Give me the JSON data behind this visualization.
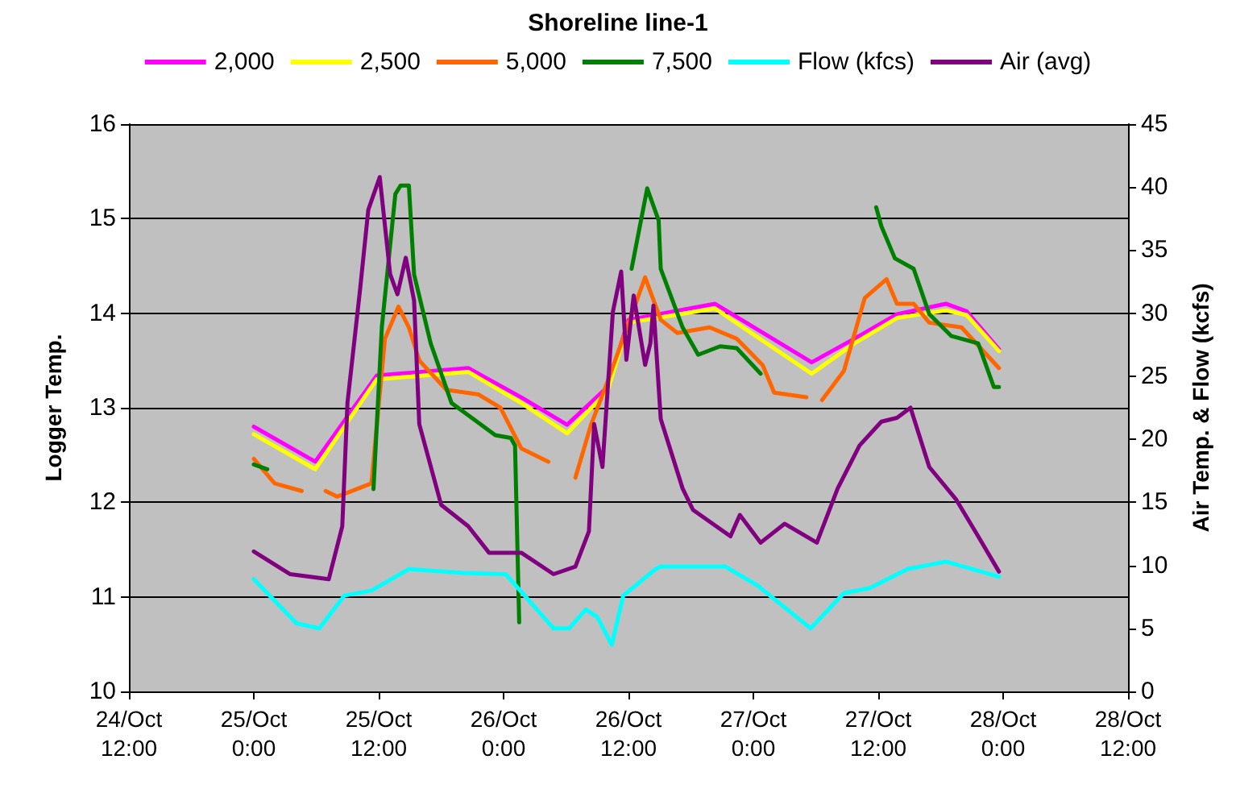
{
  "chart_data": {
    "type": "line",
    "title": "Shoreline line-1",
    "ylabel": "Logger Temp.",
    "y2label": "Air Temp. & Flow (kcfs)",
    "xlim": [
      "--10-24T12:00",
      "--10-28T12:00"
    ],
    "xticks": [
      {
        "value": "--10-24T12:00",
        "label": "24/Oct\n12:00"
      },
      {
        "value": "--10-25T00:00",
        "label": "25/Oct\n0:00"
      },
      {
        "value": "--10-25T12:00",
        "label": "25/Oct\n12:00"
      },
      {
        "value": "--10-26T00:00",
        "label": "26/Oct\n0:00"
      },
      {
        "value": "--10-26T12:00",
        "label": "26/Oct\n12:00"
      },
      {
        "value": "--10-27T00:00",
        "label": "27/Oct\n0:00"
      },
      {
        "value": "--10-27T12:00",
        "label": "27/Oct\n12:00"
      },
      {
        "value": "--10-28T00:00",
        "label": "28/Oct\n0:00"
      },
      {
        "value": "--10-28T12:00",
        "label": "28/Oct\n12:00"
      }
    ],
    "ylim": [
      10,
      16
    ],
    "yticks": [
      10,
      11,
      12,
      13,
      14,
      15,
      16
    ],
    "y2lim": [
      0,
      45
    ],
    "y2ticks": [
      0,
      5,
      10,
      15,
      20,
      25,
      30,
      35,
      40,
      45
    ],
    "grid": "y",
    "legend": "top",
    "marker": "none",
    "line_style": "solid",
    "series": [
      {
        "name": "2,000",
        "color": "#ff00ff",
        "x": [
          "--10-25T00:00",
          "--10-25T05:54",
          "--10-25T11:48",
          "--10-25T20:36",
          "--10-26T01:42",
          "--10-26T06:06",
          "--10-26T10:00",
          "--10-26T12:00",
          "--10-26T20:18",
          "--10-27T05:36",
          "--10-27T09:42",
          "--10-27T13:48",
          "--10-27T18:30",
          "--10-27T20:30",
          "--10-27T23:36"
        ],
        "values": [
          12.8,
          12.43,
          13.34,
          13.42,
          13.11,
          12.82,
          13.22,
          13.93,
          14.1,
          13.48,
          13.73,
          13.99,
          14.1,
          14.02,
          13.62
        ]
      },
      {
        "name": "2,500",
        "color": "#ffff00",
        "x": [
          "--10-25T00:00",
          "--10-25T05:54",
          "--10-25T11:48",
          "--10-25T20:36",
          "--10-26T01:42",
          "--10-26T06:06",
          "--10-26T10:00",
          "--10-26T12:00",
          "--10-26T20:18",
          "--10-27T05:36",
          "--10-27T09:42",
          "--10-27T13:48",
          "--10-27T18:30",
          "--10-27T20:30",
          "--10-27T23:36"
        ],
        "values": [
          12.72,
          12.35,
          13.3,
          13.38,
          13.05,
          12.73,
          13.18,
          13.9,
          14.05,
          13.36,
          13.68,
          13.95,
          14.03,
          13.98,
          13.6
        ]
      },
      {
        "name": "5,000",
        "color": "#ff6600",
        "x": [
          "--10-25T00:00",
          "--10-25T02:00",
          "--10-25T04:36",
          "--10-25T05:48",
          "--10-25T06:54",
          "--10-25T08:00",
          "--10-25T11:18",
          "--10-25T12:36",
          "--10-25T13:54",
          "--10-25T14:54",
          "--10-25T15:54",
          "--10-25T18:30",
          "--10-25T21:36",
          "--10-25T23:42",
          "--10-26T01:42",
          "--10-26T04:18",
          "--10-26T05:30",
          "--10-26T06:54",
          "--10-26T08:24",
          "--10-26T10:00",
          "--10-26T13:36",
          "--10-26T15:06",
          "--10-26T16:42",
          "--10-26T19:48",
          "--10-26T22:24",
          "--10-27T00:54",
          "--10-27T02:00",
          "--10-27T05:06",
          "--10-27T05:48",
          "--10-27T06:36",
          "--10-27T08:42",
          "--10-27T10:42",
          "--10-27T12:48",
          "--10-27T13:48",
          "--10-27T15:24",
          "--10-27T16:54",
          "--10-27T20:00",
          "--10-27T23:36"
        ],
        "values": [
          12.46,
          12.2,
          12.12,
          null,
          12.12,
          12.06,
          12.2,
          13.73,
          14.07,
          13.85,
          13.5,
          13.19,
          13.14,
          13,
          12.57,
          12.43,
          null,
          12.26,
          12.82,
          13.28,
          14.38,
          13.93,
          13.79,
          13.85,
          13.73,
          13.45,
          13.16,
          13.11,
          null,
          13.08,
          13.39,
          14.16,
          14.36,
          14.1,
          14.1,
          13.9,
          13.85,
          13.42
        ]
      },
      {
        "name": "7,500",
        "color": "#008000",
        "x": [
          "--10-25T00:00",
          "--10-25T01:18",
          "--10-25T06:00",
          "--10-25T11:30",
          "--10-25T12:18",
          "--10-25T13:36",
          "--10-25T14:06",
          "--10-25T14:54",
          "--10-25T15:24",
          "--10-25T17:00",
          "--10-25T19:00",
          "--10-25T21:06",
          "--10-25T23:12",
          "--10-26T00:42",
          "--10-26T01:06",
          "--10-26T01:30",
          "--10-26T07:00",
          "--10-26T12:18",
          "--10-26T13:48",
          "--10-26T14:54",
          "--10-26T15:06",
          "--10-26T17:12",
          "--10-26T18:42",
          "--10-26T20:48",
          "--10-26T22:24",
          "--10-27T00:42",
          "--10-27T06:00",
          "--10-27T11:48",
          "--10-27T12:18",
          "--10-27T13:36",
          "--10-27T15:24",
          "--10-27T16:54",
          "--10-27T19:00",
          "--10-27T21:36",
          "--10-27T23:06",
          "--10-27T23:36"
        ],
        "values": [
          12.4,
          12.35,
          null,
          12.14,
          13.85,
          15.26,
          15.35,
          15.35,
          14.41,
          13.68,
          13.05,
          12.88,
          12.71,
          12.68,
          12.6,
          10.73,
          null,
          14.47,
          15.32,
          14.98,
          14.47,
          13.85,
          13.56,
          13.65,
          13.63,
          13.36,
          null,
          15.12,
          14.92,
          14.58,
          14.47,
          13.99,
          13.76,
          13.68,
          13.22,
          13.22
        ]
      },
      {
        "name": "Flow (kfcs)",
        "color": "#00ffff",
        "axis": "y2",
        "x": [
          "--10-25T00:00",
          "--10-25T04:06",
          "--10-25T06:18",
          "--10-25T08:42",
          "--10-25T11:18",
          "--10-25T14:54",
          "--10-25T20:06",
          "--10-26T00:12",
          "--10-26T04:48",
          "--10-26T06:18",
          "--10-26T07:54",
          "--10-26T09:00",
          "--10-26T10:24",
          "--10-26T11:30",
          "--10-26T14:36",
          "--10-26T15:06",
          "--10-26T21:18",
          "--10-27T00:24",
          "--10-27T05:30",
          "--10-27T08:42",
          "--10-27T11:12",
          "--10-27T14:48",
          "--10-27T18:30",
          "--10-27T23:36"
        ],
        "values": [
          8.9,
          5.4,
          5,
          7.6,
          8,
          9.7,
          9.4,
          9.3,
          5,
          5,
          6.5,
          5.9,
          3.7,
          7.6,
          9.7,
          9.9,
          9.9,
          8.4,
          5,
          7.8,
          8.2,
          9.7,
          10.3,
          9.1
        ]
      },
      {
        "name": "Air (avg)",
        "color": "#800080",
        "axis": "y2",
        "x": [
          "--10-25T00:00",
          "--10-25T03:30",
          "--10-25T07:12",
          "--10-25T08:30",
          "--10-25T09:00",
          "--10-25T10:12",
          "--10-25T11:00",
          "--10-25T12:06",
          "--10-25T13:06",
          "--10-25T13:48",
          "--10-25T14:36",
          "--10-25T15:24",
          "--10-25T15:54",
          "--10-25T18:00",
          "--10-25T20:36",
          "--10-25T22:36",
          "--10-26T01:42",
          "--10-26T04:48",
          "--10-26T06:54",
          "--10-26T08:12",
          "--10-26T08:42",
          "--10-26T09:30",
          "--10-26T10:30",
          "--10-26T11:18",
          "--10-26T11:48",
          "--10-26T12:30",
          "--10-26T13:36",
          "--10-26T14:06",
          "--10-26T14:24",
          "--10-26T15:06",
          "--10-26T17:12",
          "--10-26T18:12",
          "--10-26T21:48",
          "--10-26T22:42",
          "--10-27T00:42",
          "--10-27T03:00",
          "--10-27T06:06",
          "--10-27T08:06",
          "--10-27T10:12",
          "--10-27T12:18",
          "--10-27T13:48",
          "--10-27T15:06",
          "--10-27T16:54",
          "--10-27T19:30",
          "--10-27T21:36",
          "--10-27T23:36"
        ],
        "values": [
          11.1,
          9.3,
          8.9,
          13.1,
          22.9,
          31.8,
          38.2,
          40.8,
          33.1,
          31.5,
          34.4,
          31,
          21.2,
          14.8,
          13.1,
          11,
          11,
          9.3,
          9.9,
          12.7,
          21.2,
          17.8,
          30.1,
          33.3,
          26.3,
          31.4,
          25.9,
          27.6,
          30.6,
          21.6,
          16.1,
          14.4,
          12.3,
          14,
          11.8,
          13.3,
          11.8,
          16.1,
          19.5,
          21.4,
          21.7,
          22.5,
          17.8,
          15.2,
          12.3,
          9.5
        ]
      }
    ]
  }
}
